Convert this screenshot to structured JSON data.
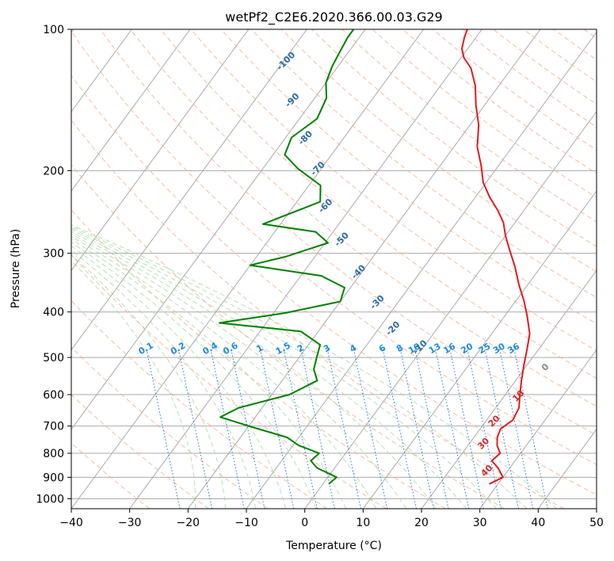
{
  "chart_data": {
    "type": "line",
    "title": "wetPf2_C2E6.2020.366.00.03.G29",
    "xlabel": "Temperature (°C)",
    "ylabel": "Pressure (hPa)",
    "xlim": [
      -40,
      50
    ],
    "ylim": [
      1050,
      100
    ],
    "yscale": "log",
    "x_ticks": [
      -40,
      -30,
      -20,
      -10,
      0,
      10,
      20,
      30,
      40,
      50
    ],
    "y_ticks": [
      100,
      200,
      300,
      400,
      500,
      600,
      700,
      800,
      900,
      1000
    ],
    "grid": true,
    "skew": true,
    "series": [
      {
        "color": "#e41a1c",
        "points": [
          [
            28.5,
            930
          ],
          [
            30,
            900
          ],
          [
            28,
            860
          ],
          [
            26,
            830
          ],
          [
            26.5,
            800
          ],
          [
            25,
            770
          ],
          [
            24,
            740
          ],
          [
            23.5,
            710
          ],
          [
            24.5,
            680
          ],
          [
            24,
            640
          ],
          [
            22.5,
            600
          ],
          [
            21,
            560
          ],
          [
            19.5,
            520
          ],
          [
            18,
            480
          ],
          [
            16.5,
            445
          ],
          [
            14,
            410
          ],
          [
            11.5,
            380
          ],
          [
            8.5,
            350
          ],
          [
            5.5,
            320
          ],
          [
            2.5,
            295
          ],
          [
            0,
            275
          ],
          [
            -2,
            258
          ],
          [
            -4.5,
            243
          ],
          [
            -7.5,
            228
          ],
          [
            -10.5,
            212
          ],
          [
            -13,
            195
          ],
          [
            -16,
            178
          ],
          [
            -18.5,
            160
          ],
          [
            -21.5,
            145
          ],
          [
            -24,
            132
          ],
          [
            -27,
            121
          ],
          [
            -29.5,
            115
          ],
          [
            -31,
            110
          ],
          [
            -32,
            104
          ],
          [
            -32.5,
            100
          ]
        ]
      },
      {
        "color": "#008000",
        "points": [
          [
            1,
            930
          ],
          [
            1.5,
            900
          ],
          [
            -3,
            860
          ],
          [
            -5,
            830
          ],
          [
            -4.5,
            800
          ],
          [
            -9,
            770
          ],
          [
            -12,
            740
          ],
          [
            -19,
            705
          ],
          [
            -26,
            670
          ],
          [
            -24,
            640
          ],
          [
            -17,
            600
          ],
          [
            -14,
            560
          ],
          [
            -16,
            530
          ],
          [
            -17,
            500
          ],
          [
            -18,
            470
          ],
          [
            -23,
            440
          ],
          [
            -38,
            422
          ],
          [
            -28,
            402
          ],
          [
            -20,
            380
          ],
          [
            -21,
            355
          ],
          [
            -26.5,
            335
          ],
          [
            -40,
            318
          ],
          [
            -35,
            305
          ],
          [
            -29.5,
            285
          ],
          [
            -33,
            270
          ],
          [
            -43,
            260
          ],
          [
            -40,
            248
          ],
          [
            -36,
            233
          ],
          [
            -38,
            215
          ],
          [
            -44,
            198
          ],
          [
            -48,
            185
          ],
          [
            -49,
            170
          ],
          [
            -47,
            155
          ],
          [
            -48,
            140
          ],
          [
            -50,
            130
          ],
          [
            -51,
            120
          ],
          [
            -51.5,
            112
          ],
          [
            -52,
            104
          ],
          [
            -52,
            100
          ]
        ]
      }
    ],
    "dry_adiabat_labels": [
      "-100",
      "-90",
      "-80",
      "-70",
      "-60",
      "-50",
      "-40",
      "-30",
      "-20",
      "-10",
      "0",
      "10",
      "20",
      "30",
      "40"
    ],
    "mixing_ratio_labels": [
      "0.1",
      "0.2",
      "0.4",
      "0.6",
      "1",
      "1.5",
      "2",
      "3",
      "4",
      "6",
      "8",
      "10",
      "13",
      "16",
      "20",
      "25",
      "30",
      "36"
    ]
  }
}
